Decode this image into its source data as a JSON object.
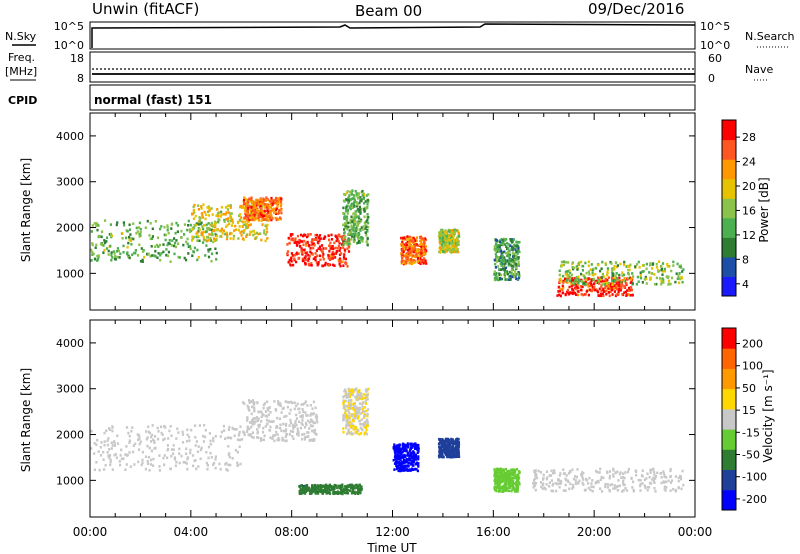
{
  "header": {
    "station": "Unwin (fitACF)",
    "beam": "Beam 00",
    "date": "09/Dec/2016"
  },
  "strips": {
    "nsky_label": "N.Sky",
    "nsky_ticks": [
      "10^5",
      "10^0"
    ],
    "nsearch_label": "N.Search",
    "nsearch_ticks": [
      "10^5",
      "10^0"
    ],
    "freq_label": "Freq.",
    "freq_unit": "[MHz]",
    "freq_ticks": [
      "18",
      "8"
    ],
    "nave_label": "Nave",
    "nave_ticks": [
      "60",
      "0"
    ],
    "cpid_label": "CPID",
    "cpid_value": "normal (fast) 151"
  },
  "colors": {
    "power_scale": [
      "#1a1aff",
      "#1e4fa8",
      "#2e7d32",
      "#4caf50",
      "#8bc34a",
      "#e6c300",
      "#ff9800",
      "#ff5722",
      "#ff0000"
    ],
    "velocity_scale": [
      "#0000ff",
      "#1e3f9a",
      "#2e7d32",
      "#66cc33",
      "#c8c8c8",
      "#ffd700",
      "#ff9900",
      "#ff6600",
      "#ff0000"
    ]
  },
  "chart_data": [
    {
      "type": "heatmap",
      "name": "power",
      "ylabel": "Slant Range [km]",
      "yticks": [
        "4000",
        "3000",
        "2000",
        "1000"
      ],
      "ylim": [
        200,
        4500
      ],
      "colorbar_label": "Power [dB]",
      "colorbar_ticks": [
        "28",
        "24",
        "20",
        "16",
        "12",
        "8",
        "4"
      ],
      "colorbar_range": [
        0,
        30
      ],
      "blobs": [
        {
          "t": 2.5,
          "r": 1700,
          "w": 5,
          "h": 900,
          "v": 12
        },
        {
          "t": 5.5,
          "r": 2100,
          "w": 3,
          "h": 800,
          "v": 18
        },
        {
          "t": 6.8,
          "r": 2400,
          "w": 1.5,
          "h": 500,
          "v": 24
        },
        {
          "t": 9.0,
          "r": 1500,
          "w": 2.5,
          "h": 700,
          "v": 28
        },
        {
          "t": 12.8,
          "r": 1500,
          "w": 1,
          "h": 600,
          "v": 24
        },
        {
          "t": 14.2,
          "r": 1700,
          "w": 0.8,
          "h": 500,
          "v": 16
        },
        {
          "t": 16.5,
          "r": 1300,
          "w": 1,
          "h": 900,
          "v": 10
        },
        {
          "t": 20.0,
          "r": 700,
          "w": 3,
          "h": 400,
          "v": 28
        },
        {
          "t": 21.0,
          "r": 1000,
          "w": 5,
          "h": 500,
          "v": 14
        },
        {
          "t": 10.5,
          "r": 2200,
          "w": 1,
          "h": 1200,
          "v": 12
        }
      ]
    },
    {
      "type": "heatmap",
      "name": "velocity",
      "ylabel": "Slant Range [km]",
      "yticks": [
        "4000",
        "3000",
        "2000",
        "1000"
      ],
      "ylim": [
        200,
        4500
      ],
      "colorbar_label": "Velocity [m s⁻¹]",
      "colorbar_ticks": [
        "200",
        "100",
        "50",
        "15",
        "-15",
        "-50",
        "-100",
        "-200"
      ],
      "colorbar_range": [
        -250,
        250
      ],
      "xlabel": "Time UT",
      "xticks": [
        "00:00",
        "04:00",
        "08:00",
        "12:00",
        "16:00",
        "20:00",
        "00:00"
      ],
      "xlim": [
        0,
        24
      ],
      "blobs": [
        {
          "t": 3.0,
          "r": 1700,
          "w": 6,
          "h": 1000,
          "v": 0
        },
        {
          "t": 7.5,
          "r": 2300,
          "w": 3,
          "h": 900,
          "v": 5
        },
        {
          "t": 9.5,
          "r": 800,
          "w": 2.5,
          "h": 200,
          "v": -120
        },
        {
          "t": 12.5,
          "r": 1500,
          "w": 1,
          "h": 600,
          "v": -230
        },
        {
          "t": 14.2,
          "r": 1700,
          "w": 0.8,
          "h": 400,
          "v": -160
        },
        {
          "t": 20.5,
          "r": 1000,
          "w": 6,
          "h": 500,
          "v": 0
        },
        {
          "t": 16.5,
          "r": 1000,
          "w": 1,
          "h": 500,
          "v": -60
        },
        {
          "t": 10.5,
          "r": 2500,
          "w": 1,
          "h": 1000,
          "v": 20
        }
      ]
    }
  ]
}
